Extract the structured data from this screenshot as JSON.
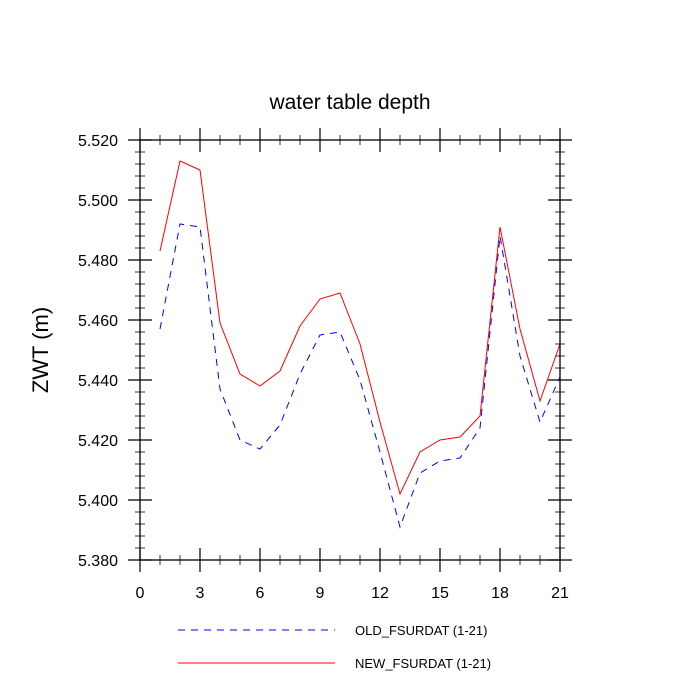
{
  "chart_data": {
    "type": "line",
    "title": "water table depth",
    "xlabel": "",
    "ylabel": "ZWT  (m)",
    "xlim": [
      0,
      21
    ],
    "ylim": [
      5.38,
      5.52
    ],
    "xticks": [
      0,
      3,
      6,
      9,
      12,
      15,
      18,
      21
    ],
    "xtick_labels": [
      "0",
      "3",
      "6",
      "9",
      "12",
      "15",
      "18",
      "21"
    ],
    "yticks": [
      5.38,
      5.4,
      5.42,
      5.44,
      5.46,
      5.48,
      5.5,
      5.52
    ],
    "ytick_labels": [
      "5.380",
      "5.400",
      "5.420",
      "5.440",
      "5.460",
      "5.480",
      "5.500",
      "5.520"
    ],
    "grid": false,
    "legend_position": "bottom",
    "x": [
      1,
      2,
      3,
      4,
      5,
      6,
      7,
      8,
      9,
      10,
      11,
      12,
      13,
      14,
      15,
      16,
      17,
      18,
      19,
      20,
      21
    ],
    "series": [
      {
        "name": "OLD_FSURDAT (1-21)",
        "color": "#0000ff",
        "style": "dashed",
        "values": [
          5.457,
          5.492,
          5.491,
          5.437,
          5.42,
          5.417,
          5.425,
          5.442,
          5.455,
          5.456,
          5.44,
          5.416,
          5.391,
          5.409,
          5.413,
          5.414,
          5.424,
          5.488,
          5.448,
          5.426,
          5.441
        ]
      },
      {
        "name": "NEW_FSURDAT (1-21)",
        "color": "#ff0000",
        "style": "solid",
        "values": [
          5.483,
          5.513,
          5.51,
          5.459,
          5.442,
          5.438,
          5.443,
          5.458,
          5.467,
          5.469,
          5.452,
          5.426,
          5.402,
          5.416,
          5.42,
          5.421,
          5.428,
          5.491,
          5.457,
          5.433,
          5.452
        ]
      }
    ]
  }
}
